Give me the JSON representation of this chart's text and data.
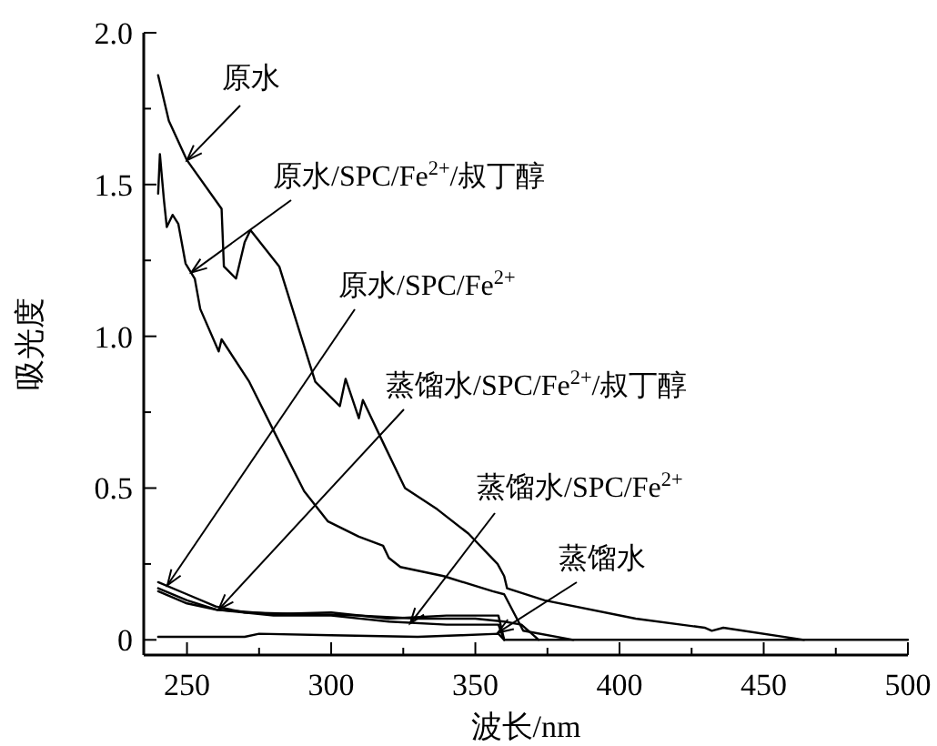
{
  "chart_data": {
    "type": "line",
    "xlabel": "波长/nm",
    "ylabel": "吸光度",
    "xlim": [
      235,
      500
    ],
    "ylim": [
      -0.05,
      2.0
    ],
    "xticks": [
      250,
      {
        "value": 275,
        "label": null
      },
      300,
      {
        "value": 325,
        "label": null
      },
      350,
      {
        "value": 375,
        "label": null
      },
      400,
      {
        "value": 425,
        "label": null
      },
      450,
      {
        "value": 475,
        "label": null
      },
      500
    ],
    "yticks": [
      0,
      {
        "value": 0.25,
        "label": null
      },
      0.5,
      {
        "value": 0.75,
        "label": null
      },
      {
        "value": 1.0,
        "label": "1.0"
      },
      {
        "value": 1.25,
        "label": null
      },
      1.5,
      {
        "value": 1.75,
        "label": null
      },
      {
        "value": 2.0,
        "label": "2.0"
      }
    ],
    "series": [
      {
        "color": "#000000",
        "x": [
          240,
          243.7,
          250,
          262,
          262.8,
          267,
          270,
          272,
          282,
          292.5,
          294.5,
          303,
          305,
          309.6,
          311,
          319,
          325.6,
          336.8,
          347.6,
          357.7,
          360,
          361,
          374,
          405.6,
          429.5,
          432,
          436,
          464
        ],
        "values": [
          1.86,
          1.71,
          1.58,
          1.42,
          1.23,
          1.19,
          1.31,
          1.35,
          1.23,
          0.91,
          0.85,
          0.77,
          0.86,
          0.73,
          0.79,
          0.63,
          0.5,
          0.43,
          0.35,
          0.25,
          0.21,
          0.17,
          0.13,
          0.07,
          0.04,
          0.03,
          0.04,
          0
        ]
      },
      {
        "color": "#000000",
        "x": [
          240,
          240.6,
          242,
          243,
          245,
          247,
          249.5,
          252.7,
          254.6,
          261,
          262,
          271.6,
          280,
          290.6,
          298.9,
          309.6,
          318,
          320,
          324,
          339,
          356,
          360,
          366.6,
          384
        ],
        "values": [
          1.47,
          1.6,
          1.45,
          1.36,
          1.4,
          1.37,
          1.24,
          1.19,
          1.09,
          0.95,
          0.99,
          0.85,
          0.69,
          0.49,
          0.39,
          0.34,
          0.31,
          0.27,
          0.24,
          0.21,
          0.16,
          0.15,
          0.03,
          0
        ]
      },
      {
        "color": "#000000",
        "x": [
          240,
          250,
          260,
          270,
          290,
          310,
          330,
          350,
          360,
          366,
          372
        ],
        "values": [
          0.19,
          0.15,
          0.11,
          0.09,
          0.085,
          0.08,
          0.07,
          0.07,
          0.06,
          0.05,
          0
        ]
      },
      {
        "color": "#000000",
        "x": [
          240,
          250,
          260,
          280,
          300,
          320,
          340,
          358,
          360
        ],
        "values": [
          0.17,
          0.13,
          0.1,
          0.085,
          0.09,
          0.07,
          0.08,
          0.08,
          0
        ]
      },
      {
        "color": "#000000",
        "x": [
          240,
          250,
          260,
          280,
          300,
          320,
          340,
          358,
          360
        ],
        "values": [
          0.16,
          0.12,
          0.1,
          0.08,
          0.08,
          0.06,
          0.05,
          0.05,
          0
        ]
      },
      {
        "color": "#000000",
        "x": [
          240,
          270,
          275,
          300,
          330,
          345,
          358,
          360,
          500
        ],
        "values": [
          0.01,
          0.01,
          0.02,
          0.015,
          0.01,
          0.015,
          0.02,
          0,
          0
        ]
      }
    ],
    "annotations": [
      {
        "text": "原水",
        "x": 250,
        "y": 1.58
      },
      {
        "text": "原水/SPC/Fe$^{2+}$/叔丁醇",
        "x": 251.5,
        "y": 1.21
      },
      {
        "text": "原水/SPC/Fe$^{2+}$",
        "x": 243.2,
        "y": 0.18
      },
      {
        "text": "蒸馏水/SPC/Fe$^{2+}$/叔丁醇",
        "x": 261,
        "y": 0.1
      },
      {
        "text": "蒸馏水/SPC/Fe$^{2+}$",
        "x": 327.4,
        "y": 0.054
      },
      {
        "text": "蒸馏水",
        "x": 357.8,
        "y": 0.024
      }
    ]
  }
}
